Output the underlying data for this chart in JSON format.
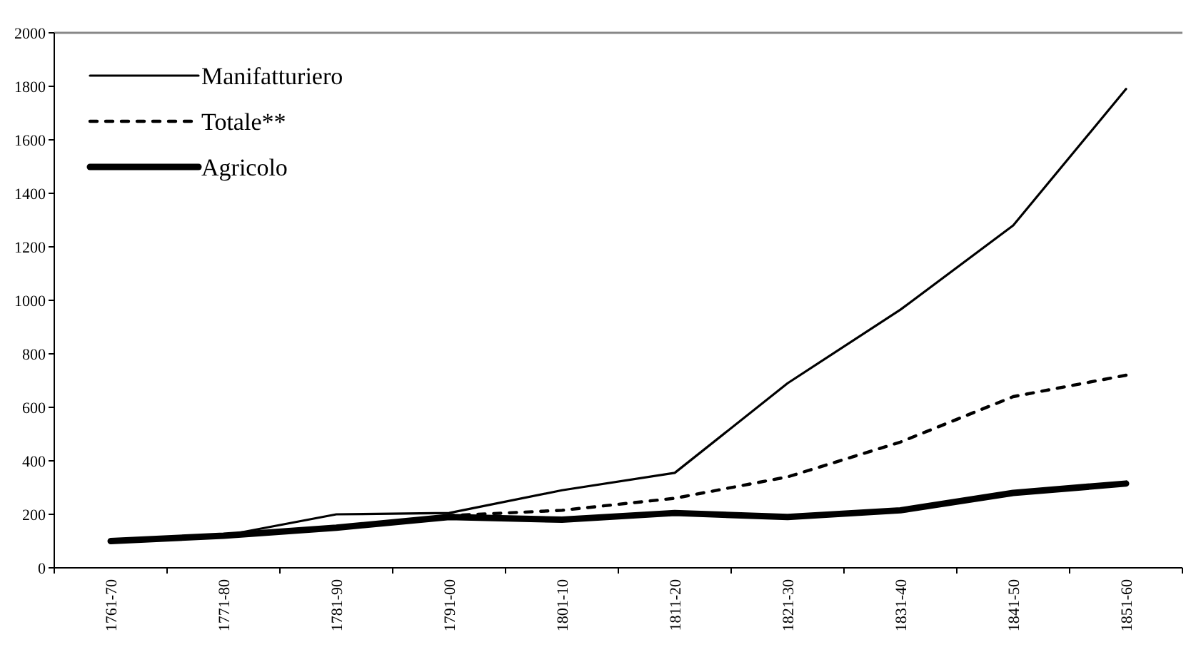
{
  "chart_data": {
    "type": "line",
    "categories": [
      "1761-70",
      "1771-80",
      "1781-90",
      "1791-00",
      "1801-10",
      "1811-20",
      "1821-30",
      "1831-40",
      "1841-50",
      "1851-60"
    ],
    "series": [
      {
        "name": "Manifatturiero",
        "color": "#000000",
        "line_style": "solid",
        "values": [
          100,
          120,
          200,
          205,
          290,
          355,
          690,
          965,
          1280,
          1790
        ]
      },
      {
        "name": "Totale**",
        "color": "#000000",
        "line_style": "dashed",
        "values": [
          100,
          120,
          150,
          195,
          215,
          260,
          340,
          470,
          640,
          720
        ]
      },
      {
        "name": "Agricolo",
        "color": "#000000",
        "line_style": "solid",
        "values": [
          100,
          120,
          150,
          190,
          180,
          205,
          190,
          215,
          280,
          315
        ]
      }
    ],
    "ylim": [
      0,
      2000
    ],
    "yticks": [
      0,
      200,
      400,
      600,
      800,
      1000,
      1200,
      1400,
      1600,
      1800,
      2000
    ],
    "grid": false,
    "legend": "top left"
  }
}
